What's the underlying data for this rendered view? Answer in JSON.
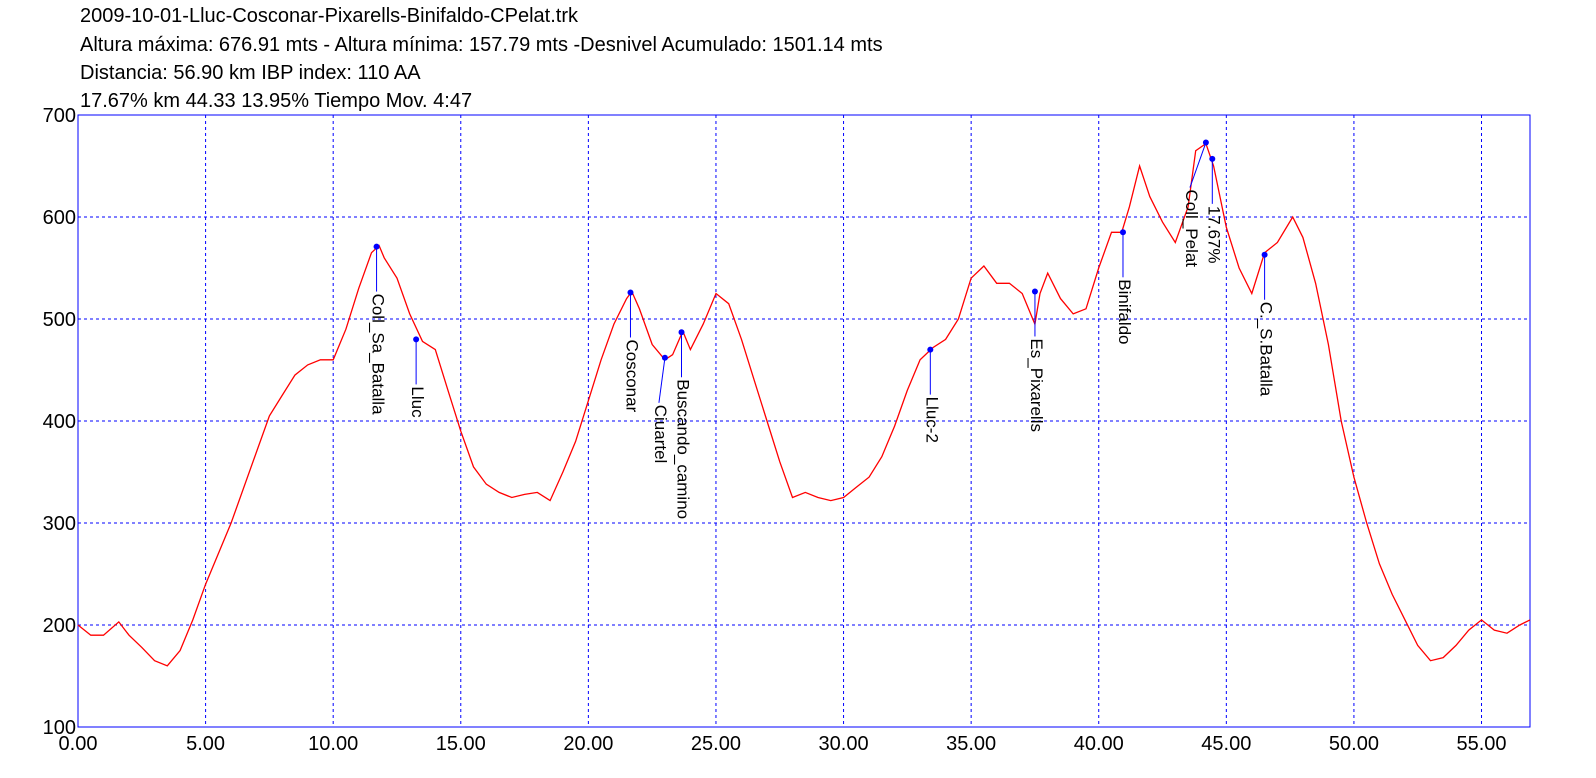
{
  "chart_data": {
    "type": "line",
    "title": "2009-10-01-Lluc-Cosconar-Pixarells-Binifaldo-CPelat.trk",
    "subtitle": "Altura máxima: 676.91 mts - Altura mínima: 157.79 mts -Desnivel Acumulado: 1501.14 mts",
    "annotations": [
      "Distancia: 56.90 km IBP index: 110 AA",
      "17.67% km 44.33  13.95%  Tiempo Mov. 4:47"
    ],
    "x": [
      0,
      0.5,
      1.0,
      1.6,
      2.0,
      2.5,
      3.0,
      3.5,
      4.0,
      4.5,
      5.0,
      6.0,
      7.0,
      7.5,
      8.0,
      8.5,
      9.0,
      9.5,
      10.0,
      10.5,
      11.0,
      11.5,
      11.8,
      12.0,
      12.5,
      13.0,
      13.5,
      14.0,
      14.5,
      15.0,
      15.5,
      16.0,
      16.5,
      17.0,
      17.5,
      18.0,
      18.5,
      19.0,
      19.5,
      20.0,
      20.5,
      21.0,
      21.5,
      21.7,
      22.0,
      22.5,
      23.0,
      23.3,
      23.7,
      24.0,
      24.5,
      25.0,
      25.5,
      26.0,
      26.5,
      27.0,
      27.5,
      28.0,
      28.5,
      29.0,
      29.5,
      30.0,
      30.5,
      31.0,
      31.5,
      32.0,
      32.5,
      33.0,
      33.5,
      34.0,
      34.5,
      35.0,
      35.5,
      36.0,
      36.5,
      37.0,
      37.5,
      37.7,
      38.0,
      38.5,
      39.0,
      39.5,
      40.0,
      40.5,
      40.9,
      41.2,
      41.6,
      42.0,
      42.5,
      43.0,
      43.5,
      43.8,
      44.2,
      44.5,
      45.0,
      45.5,
      46.0,
      46.5,
      47.0,
      47.6,
      48.0,
      48.5,
      49.0,
      49.5,
      50.0,
      50.5,
      51.0,
      51.5,
      52.0,
      52.5,
      53.0,
      53.5,
      54.0,
      54.5,
      55.0,
      55.5,
      56.0,
      56.5,
      56.9
    ],
    "series": [
      {
        "name": "Altura",
        "color": "#ff0000",
        "values": [
          200,
          190,
          190,
          203,
          190,
          178,
          165,
          160,
          175,
          205,
          240,
          300,
          370,
          405,
          425,
          445,
          455,
          460,
          460,
          490,
          530,
          565,
          572,
          560,
          540,
          505,
          478,
          470,
          430,
          390,
          355,
          338,
          330,
          325,
          328,
          330,
          322,
          350,
          380,
          420,
          460,
          495,
          520,
          527,
          510,
          475,
          460,
          465,
          488,
          470,
          495,
          525,
          515,
          480,
          440,
          400,
          360,
          325,
          330,
          325,
          322,
          325,
          335,
          345,
          365,
          395,
          430,
          460,
          472,
          480,
          500,
          540,
          552,
          535,
          535,
          525,
          495,
          525,
          545,
          520,
          505,
          510,
          550,
          585,
          585,
          610,
          650,
          620,
          595,
          575,
          610,
          665,
          672,
          650,
          590,
          550,
          525,
          565,
          575,
          600,
          580,
          535,
          475,
          400,
          345,
          300,
          260,
          230,
          205,
          180,
          165,
          168,
          180,
          195,
          205,
          195,
          192,
          200,
          205
        ]
      }
    ],
    "waypoints": [
      {
        "name": "Coll_Sa_Batalla",
        "x": 11.7,
        "y": 571
      },
      {
        "name": "Lluc",
        "x": 13.25,
        "y": 480
      },
      {
        "name": "Cosconar",
        "x": 21.65,
        "y": 526
      },
      {
        "name": "Ciuartel",
        "x": 23.0,
        "y": 462
      },
      {
        "name": "Buscando_camino",
        "x": 23.65,
        "y": 487
      },
      {
        "name": "Lluc-2",
        "x": 33.4,
        "y": 470
      },
      {
        "name": "Es_Pixarells",
        "x": 37.5,
        "y": 527
      },
      {
        "name": "Binifaldo",
        "x": 40.95,
        "y": 585
      },
      {
        "name": "Coll_Pelat",
        "x": 44.2,
        "y": 673
      },
      {
        "name": "17.67%",
        "x": 44.45,
        "y": 657
      },
      {
        "name": "C._S.Batalla",
        "x": 46.5,
        "y": 563
      }
    ],
    "waypoint_color": "#0000ff",
    "xlim": [
      0,
      56.9
    ],
    "ylim": [
      100,
      700
    ],
    "xticks": [
      {
        "value": 0,
        "label": "0.00"
      },
      {
        "value": 5,
        "label": "5.00"
      },
      {
        "value": 10,
        "label": "10.00"
      },
      {
        "value": 15,
        "label": "15.00"
      },
      {
        "value": 20,
        "label": "20.00"
      },
      {
        "value": 25,
        "label": "25.00"
      },
      {
        "value": 30,
        "label": "30.00"
      },
      {
        "value": 35,
        "label": "35.00"
      },
      {
        "value": 40,
        "label": "40.00"
      },
      {
        "value": 45,
        "label": "45.00"
      },
      {
        "value": 50,
        "label": "50.00"
      },
      {
        "value": 55,
        "label": "55.00"
      }
    ],
    "yticks": [
      100,
      200,
      300,
      400,
      500,
      600,
      700
    ],
    "grid": true
  }
}
